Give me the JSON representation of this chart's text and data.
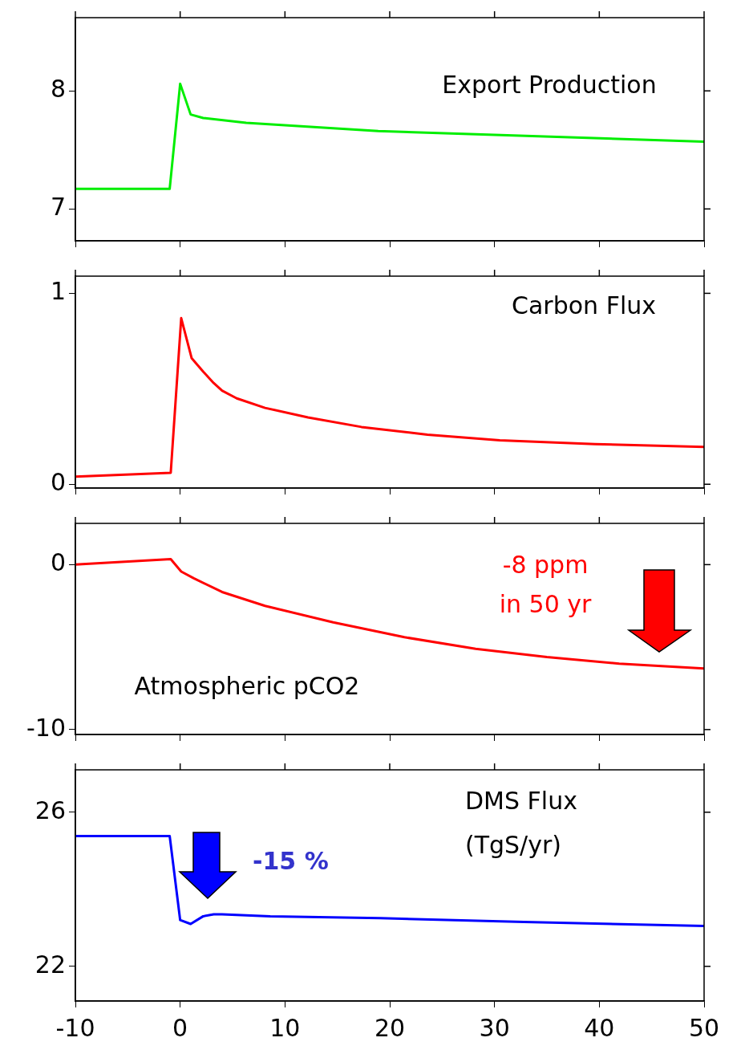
{
  "chart_data": [
    {
      "type": "line",
      "annotations": [
        "Export Production"
      ],
      "xlim": [
        -10,
        50
      ],
      "xticks": [
        -10,
        0,
        10,
        20,
        30,
        40,
        50
      ],
      "ylim": [
        6.73,
        8.62
      ],
      "yticks": [
        7,
        8
      ],
      "tick_labels": "y",
      "grid": false,
      "legend": false,
      "marker": "none",
      "line_style": "solid",
      "series": [
        {
          "color": "#00ee00",
          "x": [
            -10,
            -1,
            0,
            1,
            2.2,
            6.3,
            18.9,
            32.4,
            50
          ],
          "values": [
            7.17,
            7.17,
            8.06,
            7.8,
            7.77,
            7.73,
            7.66,
            7.62,
            7.57
          ]
        }
      ]
    },
    {
      "type": "line",
      "annotations": [
        "Carbon Flux"
      ],
      "xlim": [
        -10,
        50
      ],
      "xticks": [
        -10,
        0,
        10,
        20,
        30,
        40,
        50
      ],
      "ylim": [
        -0.02,
        1.09
      ],
      "yticks": [
        0,
        1
      ],
      "tick_labels": "y",
      "grid": false,
      "legend": false,
      "marker": "none",
      "line_style": "solid",
      "series": [
        {
          "color": "#ff0000",
          "x": [
            -10,
            -0.9,
            0.1,
            1.1,
            2.2,
            3.2,
            4,
            5.4,
            8.1,
            12.2,
            17.3,
            23.6,
            30.5,
            39.6,
            50
          ],
          "values": [
            0.04,
            0.06,
            0.87,
            0.66,
            0.59,
            0.53,
            0.49,
            0.45,
            0.4,
            0.35,
            0.3,
            0.26,
            0.23,
            0.21,
            0.195
          ]
        }
      ]
    },
    {
      "type": "line",
      "annotations": [
        "Atmospheric pCO2",
        "-8 ppm\nin 50 yr"
      ],
      "xlim": [
        -10,
        50
      ],
      "xticks": [
        -10,
        0,
        10,
        20,
        30,
        40,
        50
      ],
      "ylim": [
        -10.3,
        2.5
      ],
      "yticks": [
        -10,
        0
      ],
      "tick_labels": "y",
      "grid": false,
      "legend": false,
      "marker": "none",
      "line_style": "solid",
      "series": [
        {
          "color": "#ff0000",
          "x": [
            -10,
            -0.9,
            0.1,
            1.3,
            4,
            8.1,
            14.6,
            21.4,
            28.2,
            35,
            41.9,
            50
          ],
          "values": [
            0,
            0.33,
            -0.42,
            -0.83,
            -1.66,
            -2.5,
            -3.5,
            -4.4,
            -5.1,
            -5.6,
            -6,
            -6.3
          ]
        }
      ]
    },
    {
      "type": "line",
      "annotations": [
        "DMS Flux\n(TgS/yr)",
        "-15 %"
      ],
      "xlim": [
        -10,
        50
      ],
      "xticks": [
        -10,
        0,
        10,
        20,
        30,
        40,
        50
      ],
      "ylim": [
        21.1,
        27.1
      ],
      "yticks": [
        22,
        26
      ],
      "grid": false,
      "legend": false,
      "marker": "none",
      "line_style": "solid",
      "series": [
        {
          "color": "#0000ff",
          "x": [
            -10,
            -1,
            0,
            1,
            2.2,
            3.2,
            4,
            8.6,
            19.1,
            32.8,
            50
          ],
          "values": [
            25.38,
            25.38,
            23.2,
            23.1,
            23.3,
            23.35,
            23.35,
            23.3,
            23.25,
            23.15,
            23.05
          ]
        }
      ]
    }
  ]
}
